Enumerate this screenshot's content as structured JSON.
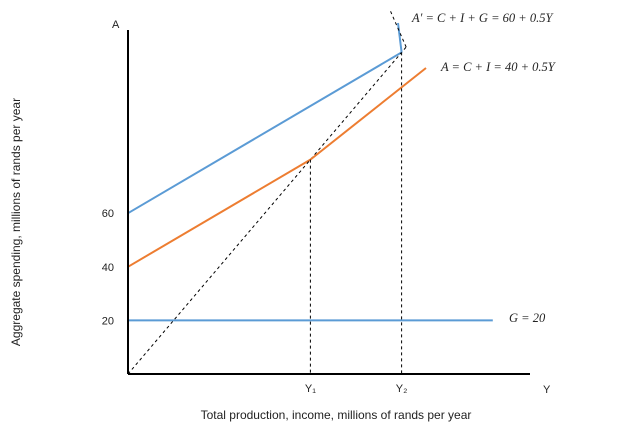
{
  "chart_data": {
    "type": "line",
    "title": "",
    "xlabel": "Total production, income, millions of rands per year",
    "ylabel": "Aggregate spending, millions of rands per year",
    "x_axis_letter": "Y",
    "y_axis_letter": "A",
    "xlim": [
      0,
      200
    ],
    "ylim": [
      0,
      150
    ],
    "y_ticks": [
      {
        "value": 20,
        "label": "20"
      },
      {
        "value": 40,
        "label": "40"
      },
      {
        "value": 60,
        "label": "60"
      }
    ],
    "x_ticks": [
      {
        "value": 80,
        "label": "Y₁"
      },
      {
        "value": 120,
        "label": "Y₂"
      }
    ],
    "series": [
      {
        "name": "A′ = C + I + G = 60 + 0.5Y",
        "color": "#5b9bd5",
        "style": "solid",
        "x": [
          0,
          120
        ],
        "y": [
          60,
          120
        ],
        "extend_to_x": 120
      },
      {
        "name": "A = C + I = 40 + 0.5Y",
        "color": "#ed7d31",
        "style": "solid",
        "x": [
          0,
          80
        ],
        "y": [
          40,
          80
        ],
        "extend_to_x": 80
      },
      {
        "name": "G = 20",
        "color": "#5b9bd5",
        "style": "solid",
        "x": [
          0,
          160
        ],
        "y": [
          20,
          20
        ]
      },
      {
        "name": "",
        "color": "#000000",
        "style": "dashed",
        "x": [
          0,
          122
        ],
        "y": [
          0,
          122
        ]
      }
    ],
    "drop_lines": [
      {
        "x": 80,
        "y": 80
      },
      {
        "x": 120,
        "y": 120
      }
    ],
    "grid": false,
    "legend": "none"
  }
}
